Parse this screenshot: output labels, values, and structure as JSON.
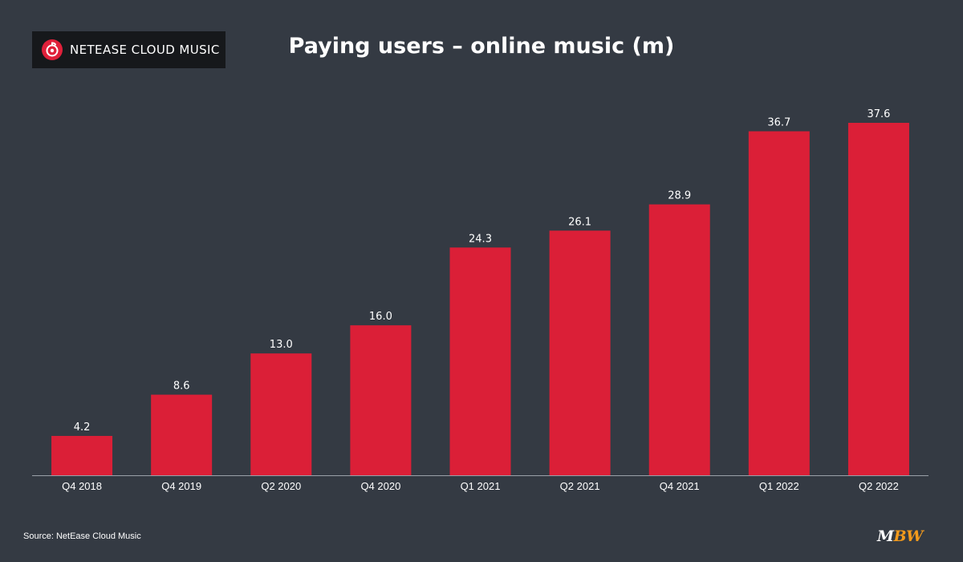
{
  "brand": {
    "logo_text": "NETEASE CLOUD MUSIC",
    "logo_icon": "netease-cloud-music-logo-icon",
    "accent": "#e0203a"
  },
  "footer": {
    "source": "Source: NetEase Cloud Music",
    "mbw_m": "M",
    "mbw_bw": "BW"
  },
  "colors": {
    "background": "#343a43",
    "bar": "#db1f37",
    "text": "#ffffff",
    "axis": "#9aa0a8",
    "mbw_accent": "#f39a1c"
  },
  "chart_data": {
    "type": "bar",
    "title": "Paying users – online music (m)",
    "categories": [
      "Q4 2018",
      "Q4 2019",
      "Q2 2020",
      "Q4 2020",
      "Q1 2021",
      "Q2 2021",
      "Q4 2021",
      "Q1 2022",
      "Q2 2022"
    ],
    "values": [
      4.2,
      8.6,
      13.0,
      16.0,
      24.3,
      26.1,
      28.9,
      36.7,
      37.6
    ],
    "value_labels": [
      "4.2",
      "8.6",
      "13.0",
      "16.0",
      "24.3",
      "26.1",
      "28.9",
      "36.7",
      "37.6"
    ],
    "xlabel": "",
    "ylabel": "",
    "ylim": [
      0,
      40
    ],
    "grid": false,
    "legend": "none"
  }
}
